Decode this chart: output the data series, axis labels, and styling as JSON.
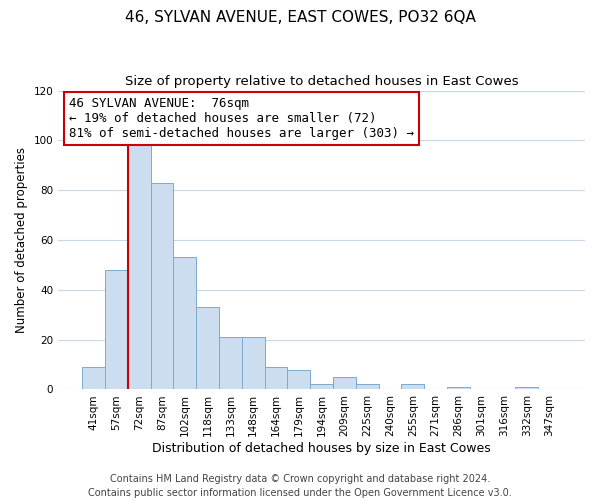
{
  "title": "46, SYLVAN AVENUE, EAST COWES, PO32 6QA",
  "subtitle": "Size of property relative to detached houses in East Cowes",
  "xlabel": "Distribution of detached houses by size in East Cowes",
  "ylabel": "Number of detached properties",
  "bar_labels": [
    "41sqm",
    "57sqm",
    "72sqm",
    "87sqm",
    "102sqm",
    "118sqm",
    "133sqm",
    "148sqm",
    "164sqm",
    "179sqm",
    "194sqm",
    "209sqm",
    "225sqm",
    "240sqm",
    "255sqm",
    "271sqm",
    "286sqm",
    "301sqm",
    "316sqm",
    "332sqm",
    "347sqm"
  ],
  "bar_values": [
    9,
    48,
    100,
    83,
    53,
    33,
    21,
    21,
    9,
    8,
    2,
    5,
    2,
    0,
    2,
    0,
    1,
    0,
    0,
    1,
    0
  ],
  "bar_color": "#ccddf0",
  "bar_edge_color": "#7baad0",
  "vline_color": "#cc0000",
  "vline_x_index": 2,
  "ylim": [
    0,
    120
  ],
  "yticks": [
    0,
    20,
    40,
    60,
    80,
    100,
    120
  ],
  "annotation_line1": "46 SYLVAN AVENUE:  76sqm",
  "annotation_line2": "← 19% of detached houses are smaller (72)",
  "annotation_line3": "81% of semi-detached houses are larger (303) →",
  "footer_line1": "Contains HM Land Registry data © Crown copyright and database right 2024.",
  "footer_line2": "Contains public sector information licensed under the Open Government Licence v3.0.",
  "background_color": "#ffffff",
  "grid_color": "#c8d8e8",
  "title_fontsize": 11,
  "subtitle_fontsize": 9.5,
  "xlabel_fontsize": 9,
  "ylabel_fontsize": 8.5,
  "tick_fontsize": 7.5,
  "annotation_fontsize": 9,
  "footer_fontsize": 7
}
